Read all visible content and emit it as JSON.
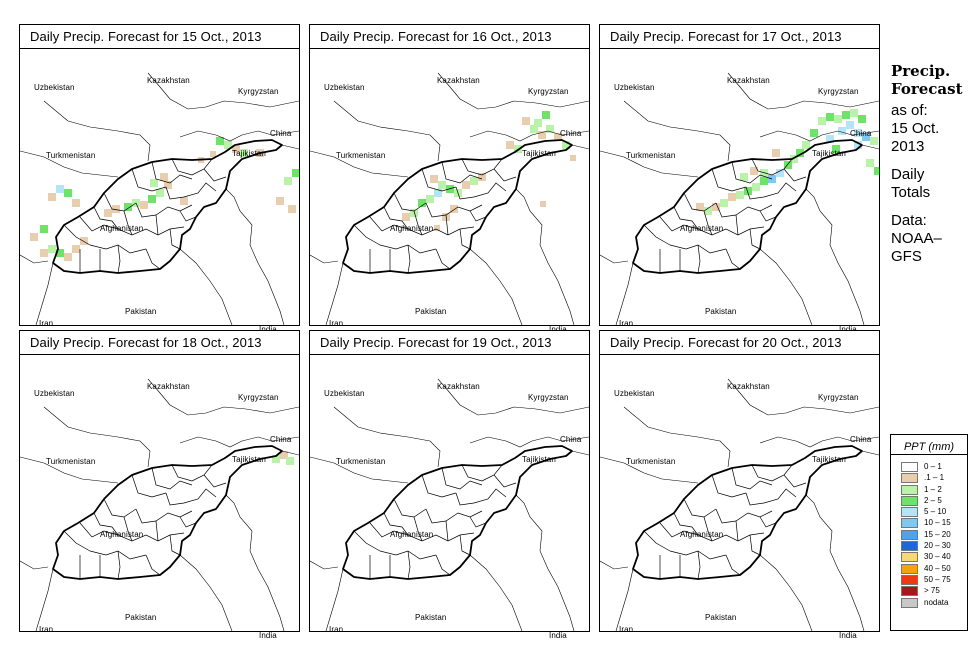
{
  "panels": [
    {
      "title": "Daily Precip. Forecast for",
      "date": "15 Oct., 2013",
      "day": 0
    },
    {
      "title": "Daily Precip. Forecast for",
      "date": "16 Oct., 2013",
      "day": 1
    },
    {
      "title": "Daily Precip. Forecast for",
      "date": "17 Oct., 2013",
      "day": 2
    },
    {
      "title": "Daily Precip. Forecast for",
      "date": "18 Oct., 2013",
      "day": 3
    },
    {
      "title": "Daily Precip. Forecast for",
      "date": "19 Oct., 2013",
      "day": 4
    },
    {
      "title": "Daily Precip. Forecast for",
      "date": "20 Oct., 2013",
      "day": 5
    }
  ],
  "map_labels": {
    "uzbekistan": "Uzbekistan",
    "kazakhstan": "Kazakhstan",
    "kyrgyzstan": "Kyrgyzstan",
    "turkmenistan": "Turkmenistan",
    "tajikistan": "Tajikistan",
    "china": "China",
    "afghanistan": "Afghanistan",
    "pakistan": "Pakistan",
    "iran": "Iran",
    "india": "India"
  },
  "sidebar": {
    "title_line1": "Precip.",
    "title_line2": "Forecast",
    "asof_line1": "as of:",
    "asof_line2": "15 Oct.",
    "asof_line3": "2013",
    "daily_line1": "Daily",
    "daily_line2": "Totals",
    "data_line1": "Data:",
    "data_line2": "NOAA–",
    "data_line3": "GFS"
  },
  "legend": {
    "title": "PPT (mm)",
    "items": [
      {
        "label": "0 – 1",
        "color": "#ffffff"
      },
      {
        "label": ".1 – 1",
        "color": "#e8cdae"
      },
      {
        "label": "1 – 2",
        "color": "#b9f2a8"
      },
      {
        "label": "2 – 5",
        "color": "#6fe26a"
      },
      {
        "label": "5 – 10",
        "color": "#b4e4f6"
      },
      {
        "label": "10 – 15",
        "color": "#7fc8f2"
      },
      {
        "label": "15 – 20",
        "color": "#4ea2ee"
      },
      {
        "label": "20 – 30",
        "color": "#2166d9"
      },
      {
        "label": "30 – 40",
        "color": "#f6d77a"
      },
      {
        "label": "40 – 50",
        "color": "#f6a20d"
      },
      {
        "label": "50 – 75",
        "color": "#ee3a10"
      },
      {
        "label": "> 75",
        "color": "#a8161a"
      },
      {
        "label": "nodata",
        "color": "#c8c8c8"
      }
    ]
  }
}
